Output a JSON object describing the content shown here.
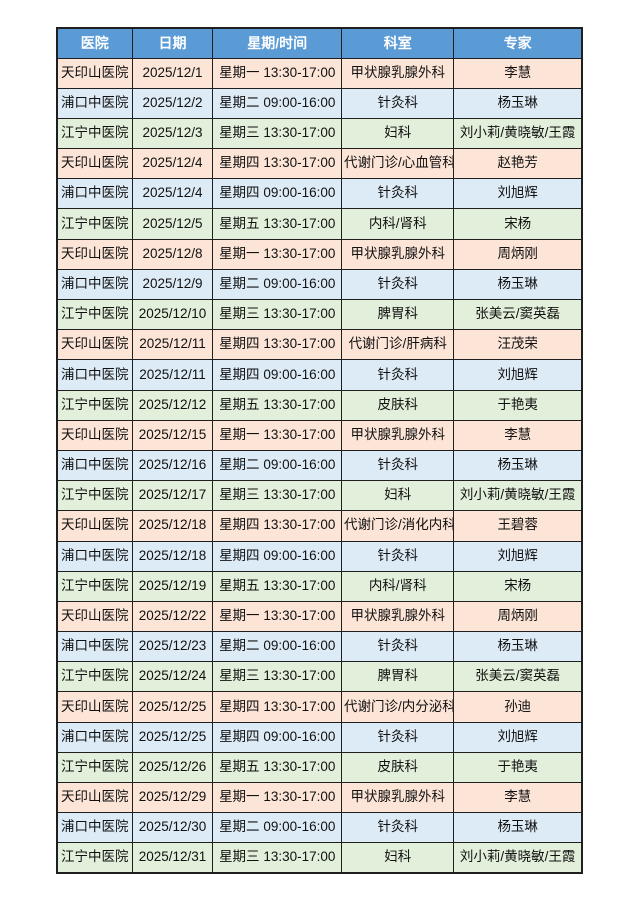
{
  "page": {
    "background": "#ffffff"
  },
  "colors": {
    "header_bg": "#5b9bd5",
    "header_text": "#ffffff",
    "border": "#1f1f1f",
    "cell_text": "#111111",
    "row_fills": {
      "天印山医院": "#fce4d6",
      "浦口中医院": "#ddebf7",
      "江宁中医院": "#e2efda"
    }
  },
  "table": {
    "columns": [
      "医院",
      "日期",
      "星期/时间",
      "科室",
      "专家"
    ],
    "rows": [
      {
        "hospital": "天印山医院",
        "date": "2025/12/1",
        "day_time": "星期一 13:30-17:00",
        "department": "甲状腺乳腺外科",
        "expert": "李慧"
      },
      {
        "hospital": "浦口中医院",
        "date": "2025/12/2",
        "day_time": "星期二 09:00-16:00",
        "department": "针灸科",
        "expert": "杨玉琳"
      },
      {
        "hospital": "江宁中医院",
        "date": "2025/12/3",
        "day_time": "星期三 13:30-17:00",
        "department": "妇科",
        "expert": "刘小莉/黄晓敏/王霞"
      },
      {
        "hospital": "天印山医院",
        "date": "2025/12/4",
        "day_time": "星期四 13:30-17:00",
        "department": "代谢门诊/心血管科",
        "expert": "赵艳芳"
      },
      {
        "hospital": "浦口中医院",
        "date": "2025/12/4",
        "day_time": "星期四 09:00-16:00",
        "department": "针灸科",
        "expert": "刘旭辉"
      },
      {
        "hospital": "江宁中医院",
        "date": "2025/12/5",
        "day_time": "星期五 13:30-17:00",
        "department": "内科/肾科",
        "expert": "宋杨"
      },
      {
        "hospital": "天印山医院",
        "date": "2025/12/8",
        "day_time": "星期一 13:30-17:00",
        "department": "甲状腺乳腺外科",
        "expert": "周炳刚"
      },
      {
        "hospital": "浦口中医院",
        "date": "2025/12/9",
        "day_time": "星期二 09:00-16:00",
        "department": "针灸科",
        "expert": "杨玉琳"
      },
      {
        "hospital": "江宁中医院",
        "date": "2025/12/10",
        "day_time": "星期三 13:30-17:00",
        "department": "脾胃科",
        "expert": "张美云/窦英磊"
      },
      {
        "hospital": "天印山医院",
        "date": "2025/12/11",
        "day_time": "星期四 13:30-17:00",
        "department": "代谢门诊/肝病科",
        "expert": "汪茂荣"
      },
      {
        "hospital": "浦口中医院",
        "date": "2025/12/11",
        "day_time": "星期四 09:00-16:00",
        "department": "针灸科",
        "expert": "刘旭辉"
      },
      {
        "hospital": "江宁中医院",
        "date": "2025/12/12",
        "day_time": "星期五 13:30-17:00",
        "department": "皮肤科",
        "expert": "于艳夷"
      },
      {
        "hospital": "天印山医院",
        "date": "2025/12/15",
        "day_time": "星期一 13:30-17:00",
        "department": "甲状腺乳腺外科",
        "expert": "李慧"
      },
      {
        "hospital": "浦口中医院",
        "date": "2025/12/16",
        "day_time": "星期二 09:00-16:00",
        "department": "针灸科",
        "expert": "杨玉琳"
      },
      {
        "hospital": "江宁中医院",
        "date": "2025/12/17",
        "day_time": "星期三 13:30-17:00",
        "department": "妇科",
        "expert": "刘小莉/黄晓敏/王霞"
      },
      {
        "hospital": "天印山医院",
        "date": "2025/12/18",
        "day_time": "星期四 13:30-17:00",
        "department": "代谢门诊/消化内科",
        "expert": "王碧蓉"
      },
      {
        "hospital": "浦口中医院",
        "date": "2025/12/18",
        "day_time": "星期四 09:00-16:00",
        "department": "针灸科",
        "expert": "刘旭辉"
      },
      {
        "hospital": "江宁中医院",
        "date": "2025/12/19",
        "day_time": "星期五 13:30-17:00",
        "department": "内科/肾科",
        "expert": "宋杨"
      },
      {
        "hospital": "天印山医院",
        "date": "2025/12/22",
        "day_time": "星期一 13:30-17:00",
        "department": "甲状腺乳腺外科",
        "expert": "周炳刚"
      },
      {
        "hospital": "浦口中医院",
        "date": "2025/12/23",
        "day_time": "星期二 09:00-16:00",
        "department": "针灸科",
        "expert": "杨玉琳"
      },
      {
        "hospital": "江宁中医院",
        "date": "2025/12/24",
        "day_time": "星期三 13:30-17:00",
        "department": "脾胃科",
        "expert": "张美云/窦英磊"
      },
      {
        "hospital": "天印山医院",
        "date": "2025/12/25",
        "day_time": "星期四 13:30-17:00",
        "department": "代谢门诊/内分泌科",
        "expert": "孙迪"
      },
      {
        "hospital": "浦口中医院",
        "date": "2025/12/25",
        "day_time": "星期四 09:00-16:00",
        "department": "针灸科",
        "expert": "刘旭辉"
      },
      {
        "hospital": "江宁中医院",
        "date": "2025/12/26",
        "day_time": "星期五 13:30-17:00",
        "department": "皮肤科",
        "expert": "于艳夷"
      },
      {
        "hospital": "天印山医院",
        "date": "2025/12/29",
        "day_time": "星期一 13:30-17:00",
        "department": "甲状腺乳腺外科",
        "expert": "李慧"
      },
      {
        "hospital": "浦口中医院",
        "date": "2025/12/30",
        "day_time": "星期二 09:00-16:00",
        "department": "针灸科",
        "expert": "杨玉琳"
      },
      {
        "hospital": "江宁中医院",
        "date": "2025/12/31",
        "day_time": "星期三 13:30-17:00",
        "department": "妇科",
        "expert": "刘小莉/黄晓敏/王霞"
      }
    ]
  }
}
